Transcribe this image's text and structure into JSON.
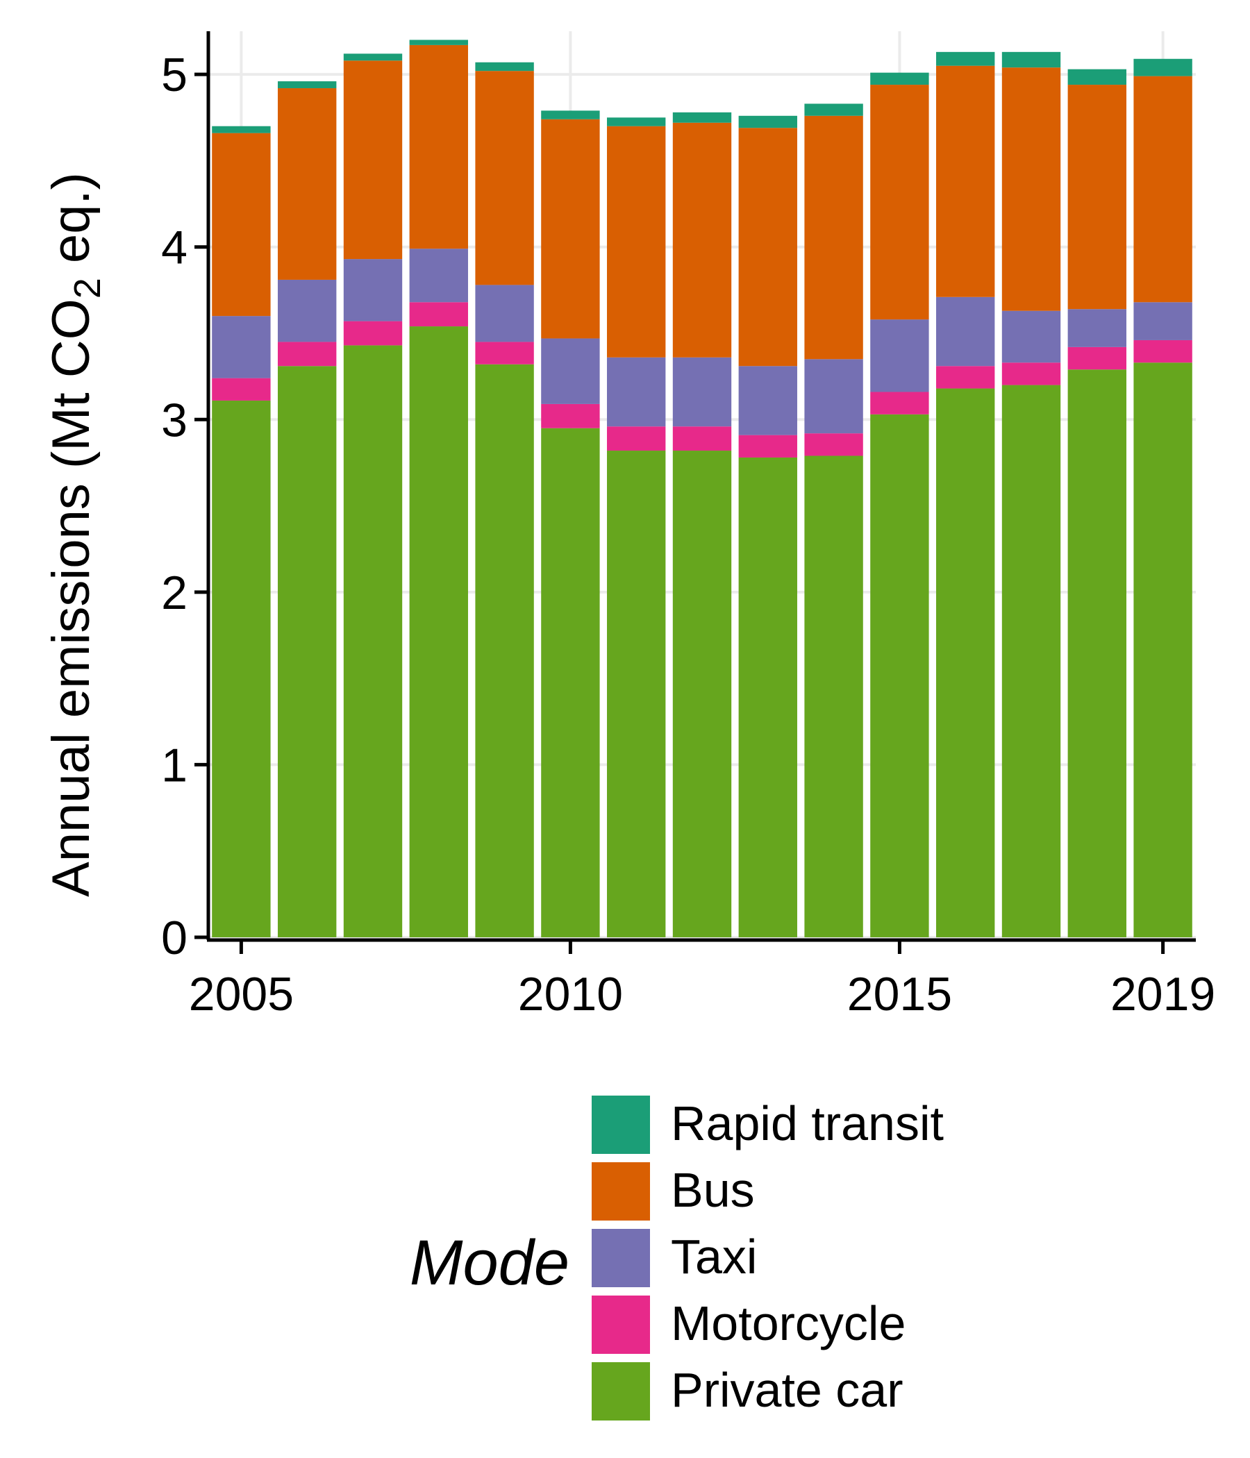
{
  "chart_data": {
    "type": "bar",
    "stacked": true,
    "title": "",
    "xlabel": "",
    "ylabel_parts": [
      "Annual emissions (Mt CO",
      "2",
      " eq.)"
    ],
    "x": [
      2005,
      2006,
      2007,
      2008,
      2009,
      2010,
      2011,
      2012,
      2013,
      2014,
      2015,
      2016,
      2017,
      2018,
      2019
    ],
    "x_ticks": [
      2005,
      2010,
      2015,
      2019
    ],
    "y_ticks": [
      0,
      1,
      2,
      3,
      4,
      5
    ],
    "ylim": [
      0,
      5.25
    ],
    "grid": true,
    "legend_position": "bottom",
    "legend_title": "Mode",
    "series": [
      {
        "name": "Private car",
        "color": "#66a61e",
        "values": [
          3.11,
          3.31,
          3.43,
          3.54,
          3.32,
          2.95,
          2.82,
          2.82,
          2.78,
          2.79,
          3.03,
          3.18,
          3.2,
          3.29,
          3.33
        ]
      },
      {
        "name": "Motorcycle",
        "color": "#e7298a",
        "values": [
          0.13,
          0.14,
          0.14,
          0.14,
          0.13,
          0.14,
          0.14,
          0.14,
          0.13,
          0.13,
          0.13,
          0.13,
          0.13,
          0.13,
          0.13
        ]
      },
      {
        "name": "Taxi",
        "color": "#7570b3",
        "values": [
          0.36,
          0.36,
          0.36,
          0.31,
          0.33,
          0.38,
          0.4,
          0.4,
          0.4,
          0.43,
          0.42,
          0.4,
          0.3,
          0.22,
          0.22
        ]
      },
      {
        "name": "Bus",
        "color": "#d95f02",
        "values": [
          1.06,
          1.11,
          1.15,
          1.18,
          1.24,
          1.27,
          1.34,
          1.36,
          1.38,
          1.41,
          1.36,
          1.34,
          1.41,
          1.3,
          1.31
        ]
      },
      {
        "name": "Rapid transit",
        "color": "#1b9e77",
        "values": [
          0.04,
          0.04,
          0.04,
          0.03,
          0.05,
          0.05,
          0.05,
          0.06,
          0.07,
          0.07,
          0.07,
          0.08,
          0.09,
          0.09,
          0.1
        ]
      }
    ]
  }
}
